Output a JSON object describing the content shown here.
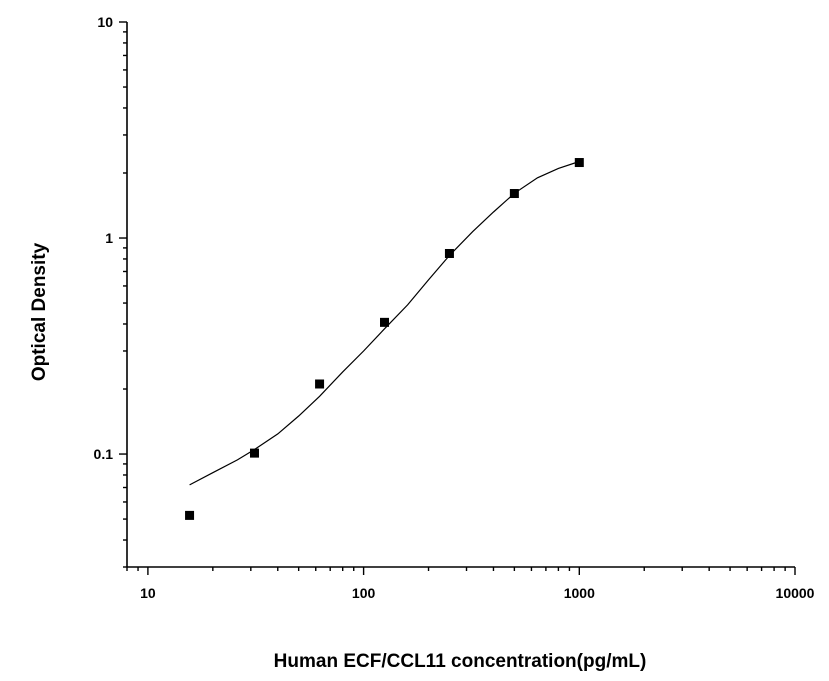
{
  "chart_data": {
    "type": "scatter",
    "title": "",
    "xlabel": "Human ECF/CCL11 concentration(pg/mL)",
    "ylabel": "Optical Density",
    "x_scale": "log",
    "y_scale": "log",
    "xlim": [
      8,
      10000
    ],
    "ylim": [
      0.03,
      10
    ],
    "x_ticks": [
      {
        "value": 10,
        "label": "10"
      },
      {
        "value": 100,
        "label": "100"
      },
      {
        "value": 1000,
        "label": "1000"
      },
      {
        "value": 10000,
        "label": "10000"
      }
    ],
    "y_ticks": [
      {
        "value": 0.1,
        "label": "0.1"
      },
      {
        "value": 1,
        "label": "1"
      },
      {
        "value": 10,
        "label": "10"
      }
    ],
    "grid": false,
    "legend": "none",
    "points": {
      "x": [
        15.6,
        31.2,
        62.5,
        125,
        250,
        500,
        1000
      ],
      "y": [
        0.052,
        0.101,
        0.211,
        0.407,
        0.848,
        1.607,
        2.236
      ]
    },
    "fit_curve": {
      "x": [
        15.6,
        20,
        26,
        31.2,
        40,
        50,
        62.5,
        80,
        100,
        125,
        160,
        200,
        250,
        320,
        400,
        500,
        640,
        800,
        1000
      ],
      "y": [
        0.072,
        0.082,
        0.094,
        0.105,
        0.124,
        0.15,
        0.185,
        0.24,
        0.3,
        0.38,
        0.49,
        0.64,
        0.83,
        1.07,
        1.32,
        1.61,
        1.9,
        2.1,
        2.26
      ]
    },
    "colors": {
      "marker": "#000000",
      "line": "#000000",
      "axis": "#000000"
    }
  }
}
